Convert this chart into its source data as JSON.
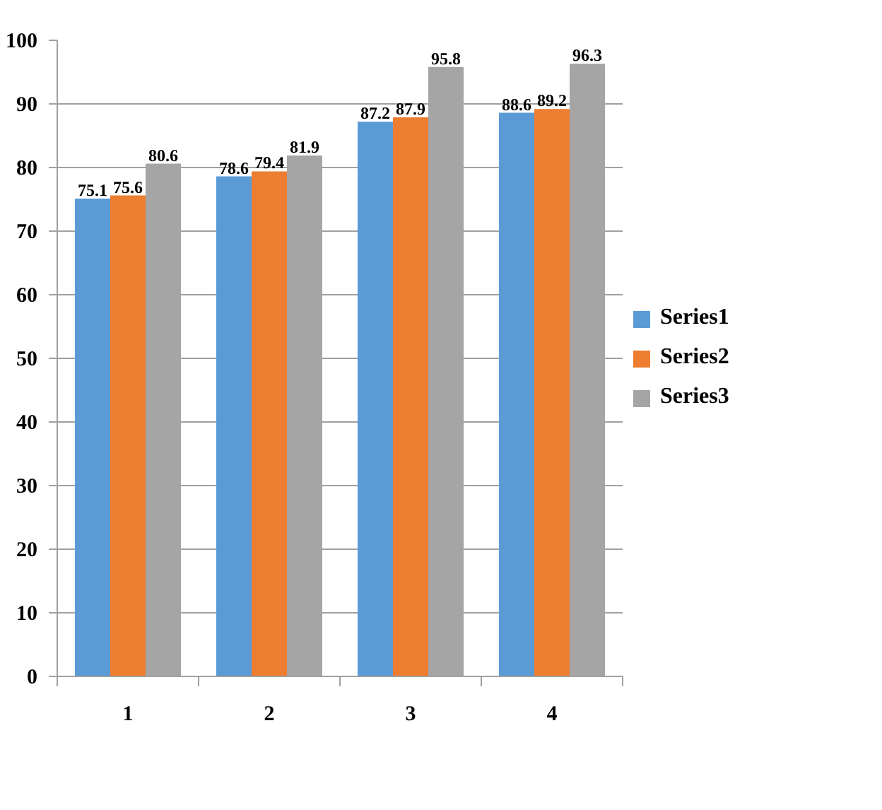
{
  "chart_data": {
    "type": "bar",
    "categories": [
      "1",
      "2",
      "3",
      "4"
    ],
    "series": [
      {
        "name": "Series1",
        "color": "#5b9bd5",
        "values": [
          75.1,
          78.6,
          87.2,
          88.6
        ]
      },
      {
        "name": "Series2",
        "color": "#ed7d31",
        "values": [
          75.6,
          79.4,
          87.9,
          89.2
        ]
      },
      {
        "name": "Series3",
        "color": "#a5a5a5",
        "values": [
          80.6,
          81.9,
          95.8,
          96.3
        ]
      }
    ],
    "ylim": [
      0,
      100
    ],
    "yticks": [
      0,
      10,
      20,
      30,
      40,
      50,
      60,
      70,
      80,
      90,
      100
    ],
    "grid": "y",
    "legend": "right",
    "data_labels": true
  }
}
